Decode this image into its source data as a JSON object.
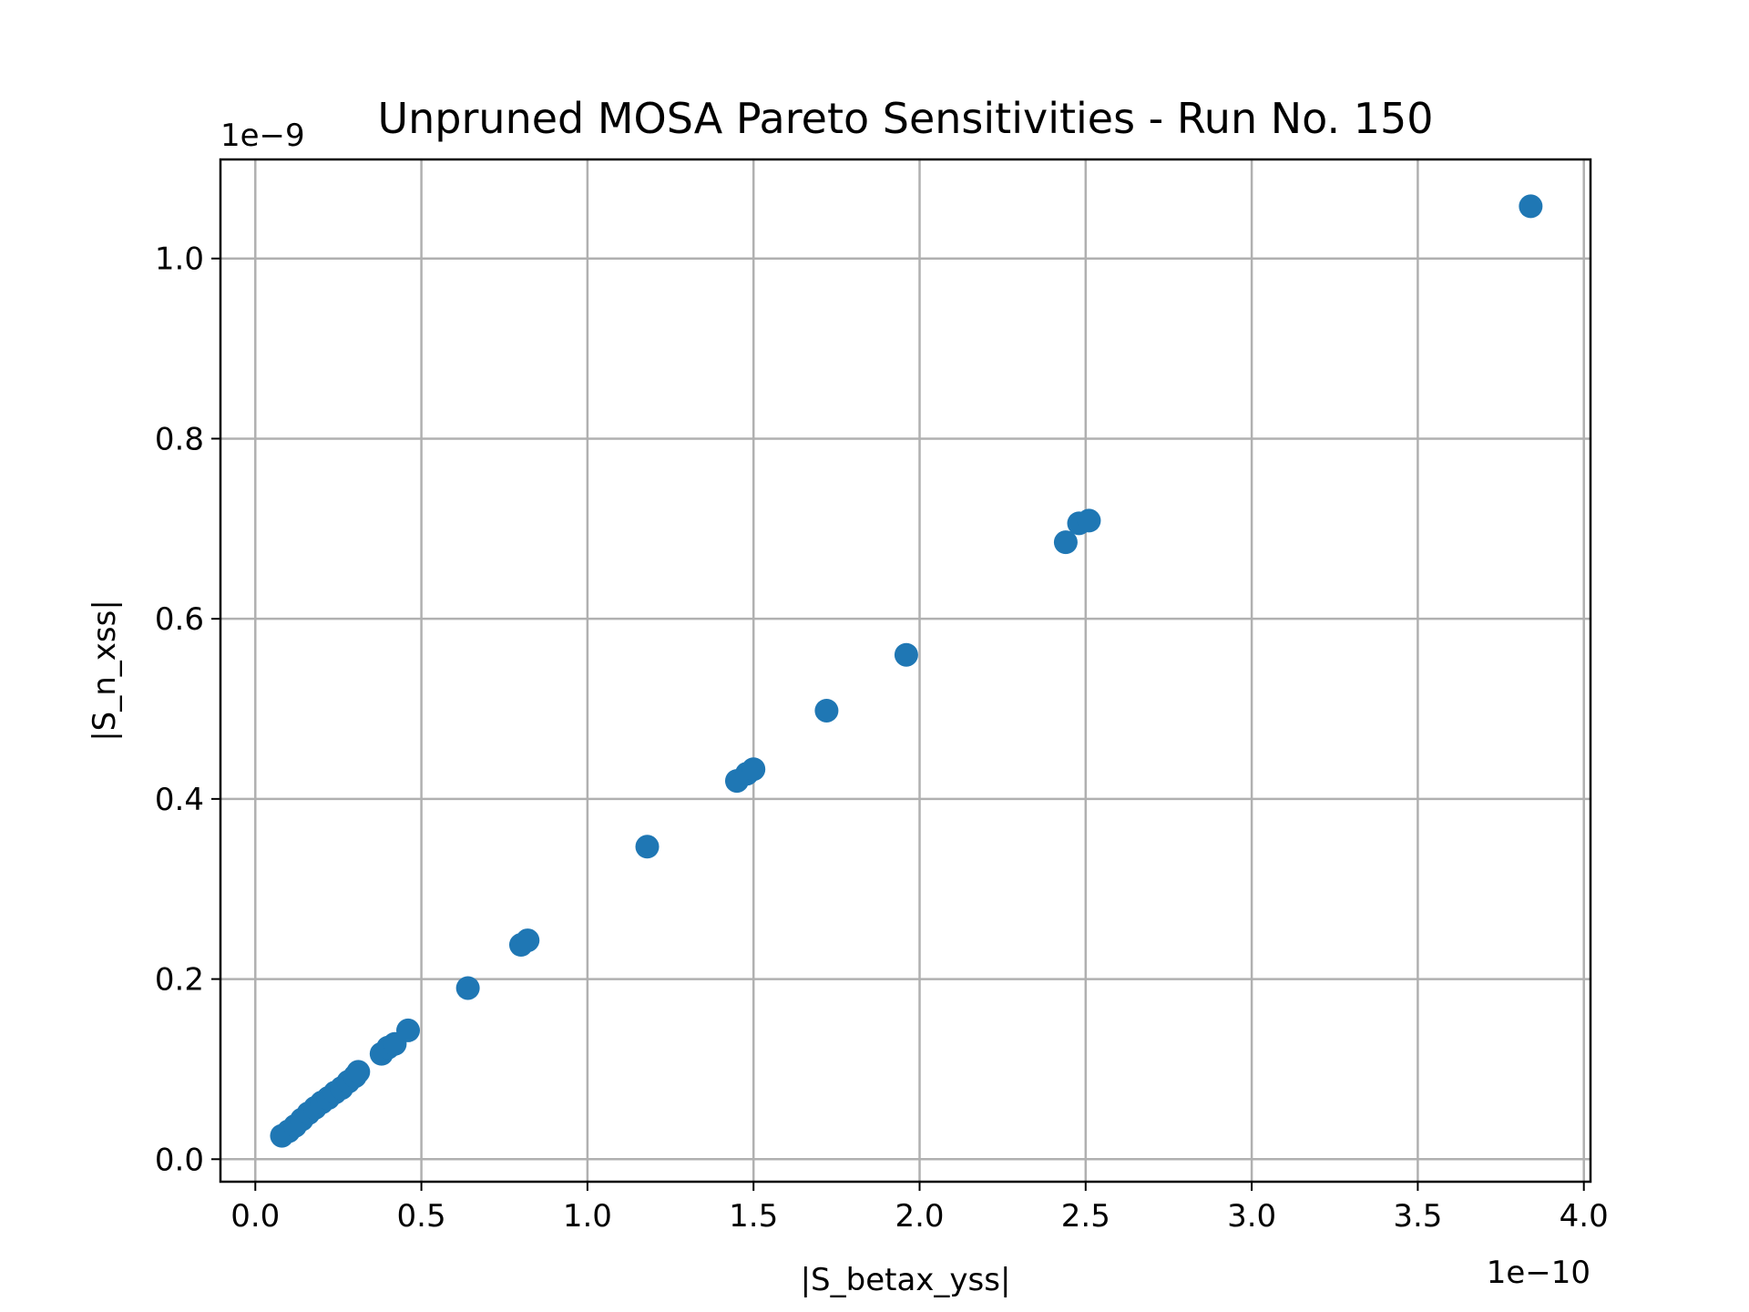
{
  "chart_data": {
    "type": "scatter",
    "title": "Unpruned MOSA Pareto Sensitivities - Run No. 150",
    "xlabel": "|S_betax_yss|",
    "ylabel": "|S_n_xss|",
    "x_offset_label": "1e−10",
    "y_offset_label": "1e−9",
    "xlim": [
      -0.105,
      4.02
    ],
    "ylim": [
      -0.025,
      1.11
    ],
    "xticks": [
      0.0,
      0.5,
      1.0,
      1.5,
      2.0,
      2.5,
      3.0,
      3.5,
      4.0
    ],
    "yticks": [
      0.0,
      0.2,
      0.4,
      0.6,
      0.8,
      1.0
    ],
    "xtick_labels": [
      "0.0",
      "0.5",
      "1.0",
      "1.5",
      "2.0",
      "2.5",
      "3.0",
      "3.5",
      "4.0"
    ],
    "ytick_labels": [
      "0.0",
      "0.2",
      "0.4",
      "0.6",
      "0.8",
      "1.0"
    ],
    "grid": true,
    "marker_color": "#1f77b4",
    "points": [
      {
        "x": 0.08,
        "y": 0.026
      },
      {
        "x": 0.1,
        "y": 0.031
      },
      {
        "x": 0.12,
        "y": 0.037
      },
      {
        "x": 0.14,
        "y": 0.044
      },
      {
        "x": 0.16,
        "y": 0.051
      },
      {
        "x": 0.18,
        "y": 0.057
      },
      {
        "x": 0.2,
        "y": 0.063
      },
      {
        "x": 0.22,
        "y": 0.068
      },
      {
        "x": 0.24,
        "y": 0.074
      },
      {
        "x": 0.26,
        "y": 0.079
      },
      {
        "x": 0.28,
        "y": 0.086
      },
      {
        "x": 0.3,
        "y": 0.092
      },
      {
        "x": 0.31,
        "y": 0.097
      },
      {
        "x": 0.38,
        "y": 0.117
      },
      {
        "x": 0.4,
        "y": 0.124
      },
      {
        "x": 0.42,
        "y": 0.128
      },
      {
        "x": 0.46,
        "y": 0.143
      },
      {
        "x": 0.64,
        "y": 0.19
      },
      {
        "x": 0.8,
        "y": 0.238
      },
      {
        "x": 0.82,
        "y": 0.243
      },
      {
        "x": 1.18,
        "y": 0.347
      },
      {
        "x": 1.45,
        "y": 0.42
      },
      {
        "x": 1.48,
        "y": 0.428
      },
      {
        "x": 1.5,
        "y": 0.433
      },
      {
        "x": 1.72,
        "y": 0.498
      },
      {
        "x": 1.96,
        "y": 0.56
      },
      {
        "x": 2.44,
        "y": 0.685
      },
      {
        "x": 2.48,
        "y": 0.706
      },
      {
        "x": 2.51,
        "y": 0.709
      },
      {
        "x": 3.84,
        "y": 1.058
      }
    ]
  }
}
